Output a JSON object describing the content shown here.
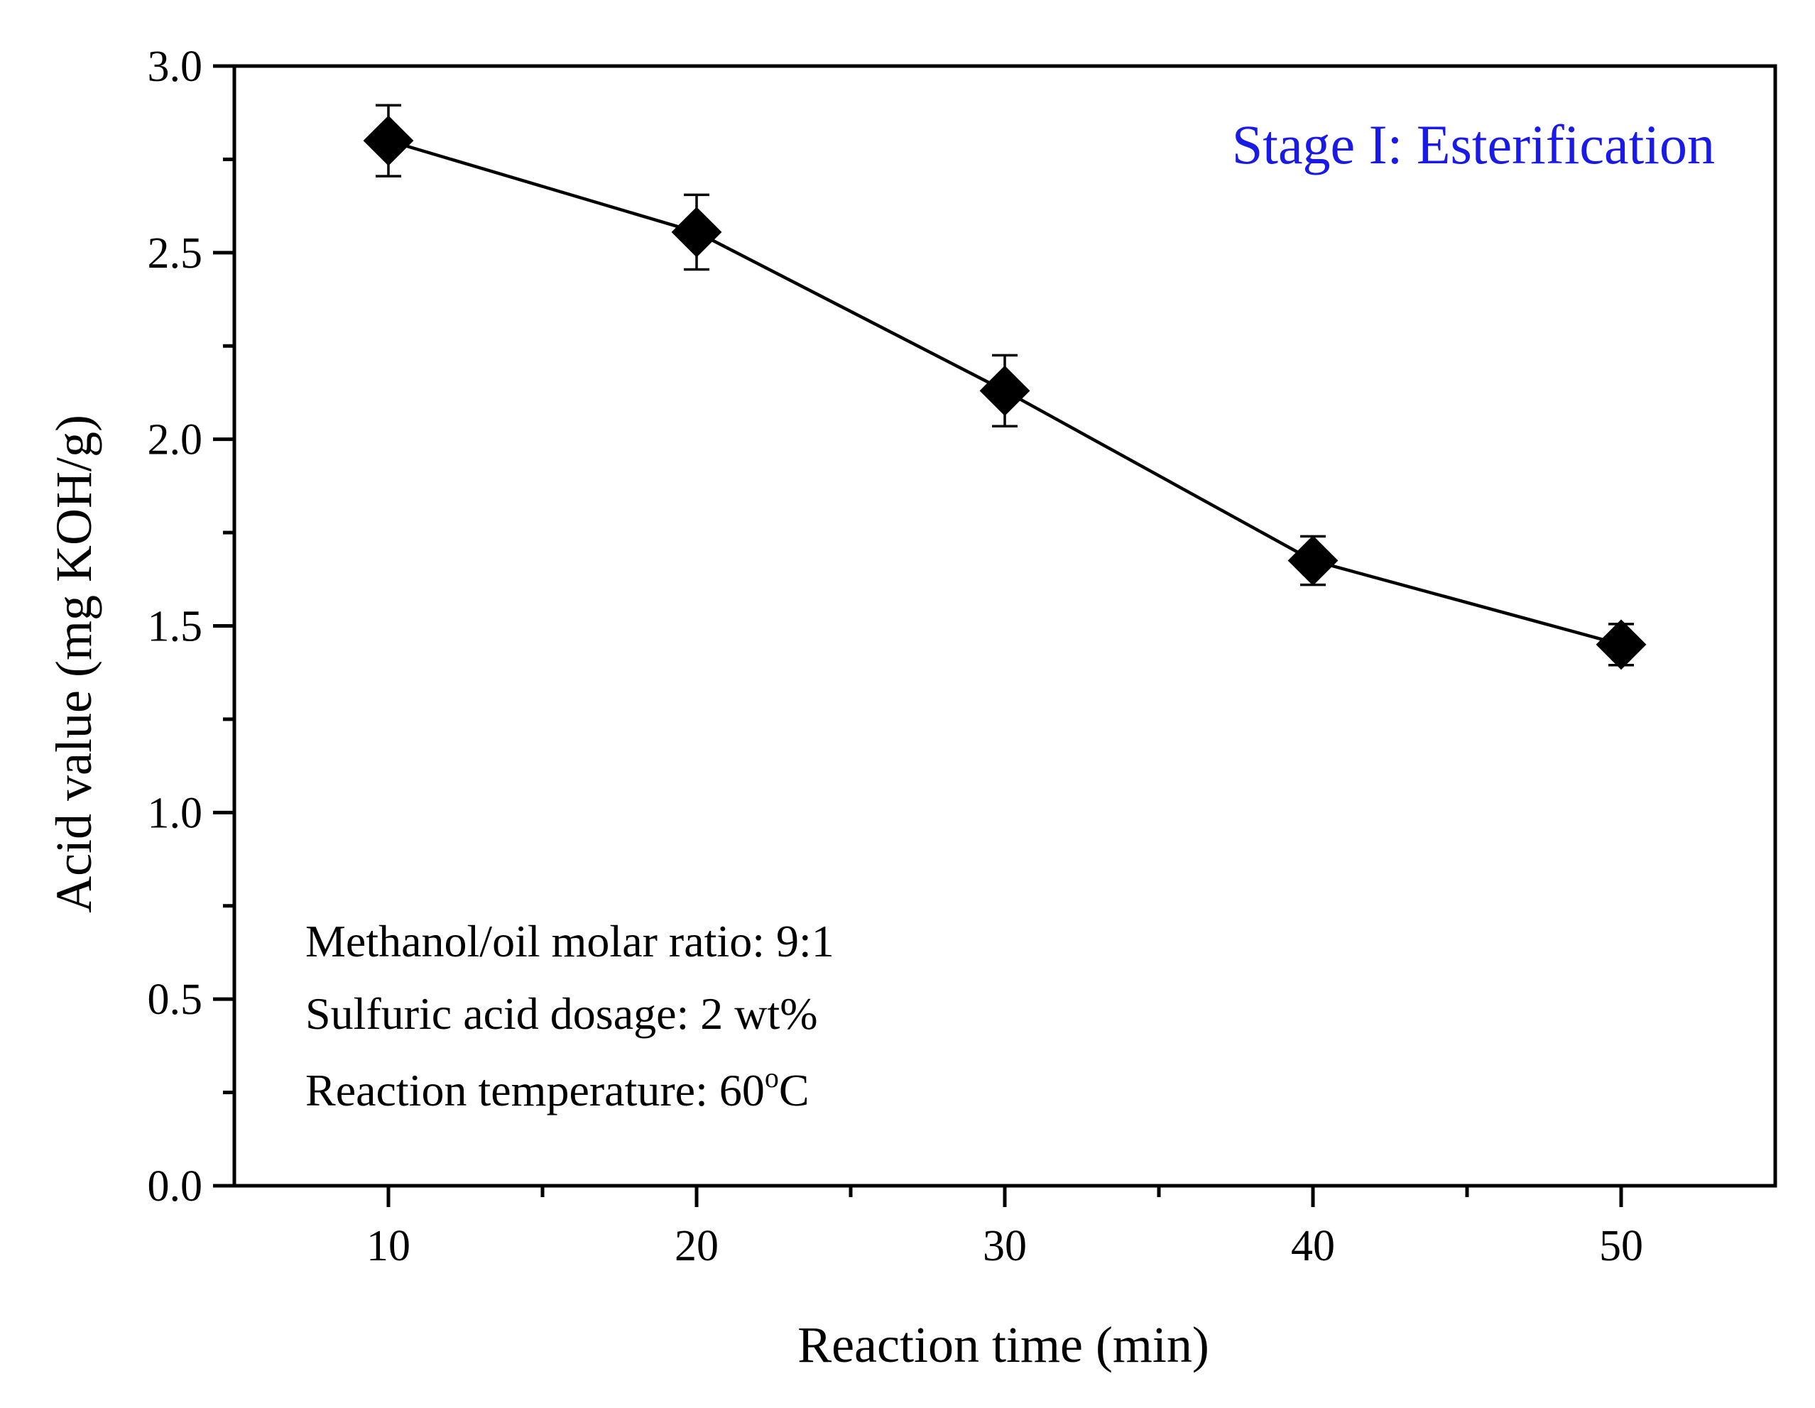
{
  "chart_data": {
    "type": "line",
    "title": "Stage I: Esterification",
    "title_color": "#1a1ae6",
    "xlabel": "Reaction time (min)",
    "ylabel": "Acid value (mg KOH/g)",
    "xlim": [
      5,
      55
    ],
    "ylim": [
      0,
      3.0
    ],
    "xticks": [
      10,
      20,
      30,
      40,
      50
    ],
    "xtick_labels": [
      "10",
      "20",
      "30",
      "40",
      "50"
    ],
    "yticks": [
      0,
      0.5,
      1.0,
      1.5,
      2.0,
      2.5,
      3.0
    ],
    "ytick_labels": [
      "0.0",
      "0.5",
      "1.0",
      "1.5",
      "2.0",
      "2.5",
      "3.0"
    ],
    "grid": false,
    "marker": "diamond",
    "series": [
      {
        "name": "Acid value",
        "color": "#000000",
        "x": [
          10,
          20,
          30,
          40,
          50
        ],
        "y": [
          2.8,
          2.555,
          2.13,
          1.675,
          1.45
        ],
        "error": [
          0.095,
          0.1,
          0.095,
          0.065,
          0.055
        ]
      }
    ],
    "annotations": {
      "line1": "Methanol/oil molar ratio: 9:1",
      "line2": "Sulfuric acid dosage: 2 wt%",
      "line3_prefix": "Reaction temperature: 60",
      "line3_sup": "o",
      "line3_suffix": "C"
    }
  }
}
